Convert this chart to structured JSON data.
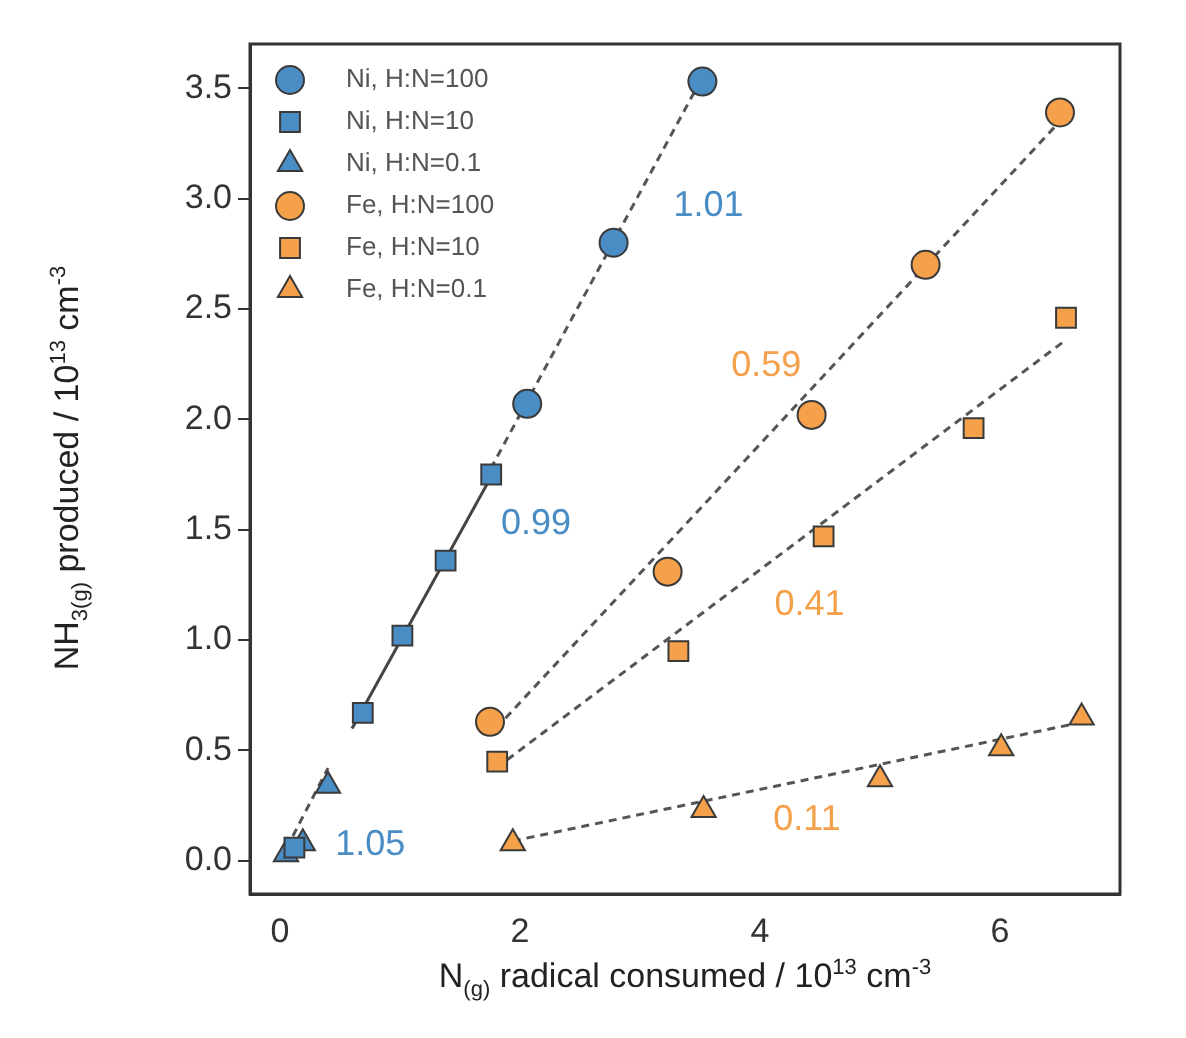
{
  "chart_data": {
    "type": "scatter",
    "xlabel": "N$_{(g)}$ radical consumed / 10$^{13}$ cm$^{-3}$",
    "ylabel": "NH$_{3(g)}$ produced / 10$^{13}$ cm$^{-3}$",
    "xlim": [
      -0.25,
      7.0
    ],
    "ylim": [
      -0.15,
      3.7
    ],
    "xticks": [
      0,
      2,
      4,
      6
    ],
    "yticks": [
      {
        "value": 0,
        "label": "0.0"
      },
      0.5,
      {
        "value": 1,
        "label": "1.0"
      },
      1.5,
      {
        "value": 2,
        "label": "2.0"
      },
      2.5,
      {
        "value": 3,
        "label": "3.0"
      },
      3.5
    ],
    "grid": false,
    "legend": "top left",
    "series": [
      {
        "name": "Ni, H:N=100",
        "color": "#4a8cc4",
        "marker": "circle",
        "x": [
          2.06,
          2.78,
          3.52
        ],
        "values": [
          2.07,
          2.8,
          3.53
        ]
      },
      {
        "type": "line",
        "color": "#555555",
        "line_style": "dashed",
        "marker": "none",
        "x": [
          1.7,
          3.52
        ],
        "values": [
          1.72,
          3.55
        ]
      },
      {
        "name": "Ni, H:N=10",
        "color": "#4a8cc4",
        "marker": "square",
        "x": [
          0.12,
          0.69,
          1.02,
          1.38,
          1.76
        ],
        "values": [
          0.06,
          0.67,
          1.02,
          1.36,
          1.75
        ]
      },
      {
        "type": "line",
        "color": "#444444",
        "line_style": "solid",
        "marker": "none",
        "x": [
          0.6,
          1.8
        ],
        "values": [
          0.6,
          1.78
        ]
      },
      {
        "name": "Ni, H:N=0.1",
        "color": "#4a8cc4",
        "marker": "triangle",
        "x": [
          0.05,
          0.19,
          0.4
        ],
        "values": [
          0.03,
          0.08,
          0.34
        ]
      },
      {
        "type": "line",
        "color": "#555555",
        "line_style": "dashed",
        "marker": "none",
        "x": [
          0,
          0.4
        ],
        "values": [
          0,
          0.42
        ]
      },
      {
        "name": "Fe, H:N=100",
        "color": "#f5a04a",
        "marker": "circle",
        "x": [
          1.75,
          3.23,
          4.43,
          5.38,
          6.5
        ],
        "values": [
          0.63,
          1.31,
          2.02,
          2.7,
          3.39
        ]
      },
      {
        "type": "line",
        "color": "#555555",
        "line_style": "dashed",
        "marker": "none",
        "x": [
          1.8,
          6.5
        ],
        "values": [
          0.6,
          3.35
        ]
      },
      {
        "name": "Fe, H:N=10",
        "color": "#f5a04a",
        "marker": "square",
        "x": [
          1.81,
          3.32,
          4.53,
          5.78,
          6.55
        ],
        "values": [
          0.45,
          0.95,
          1.47,
          1.96,
          2.46
        ]
      },
      {
        "type": "line",
        "color": "#555555",
        "line_style": "dashed",
        "marker": "none",
        "x": [
          1.8,
          6.55
        ],
        "values": [
          0.42,
          2.36
        ]
      },
      {
        "name": "Fe, H:N=0.1",
        "color": "#f5a04a",
        "marker": "triangle",
        "x": [
          1.94,
          3.53,
          5.0,
          6.01,
          6.68
        ],
        "values": [
          0.08,
          0.23,
          0.37,
          0.51,
          0.65
        ]
      },
      {
        "type": "line",
        "color": "#555555",
        "line_style": "dashed",
        "marker": "none",
        "x": [
          1.94,
          6.7
        ],
        "values": [
          0.09,
          0.63
        ]
      }
    ],
    "annotations": [
      "1.01",
      "0.99",
      "1.05",
      "0.59",
      "0.41",
      "0.11"
    ]
  }
}
